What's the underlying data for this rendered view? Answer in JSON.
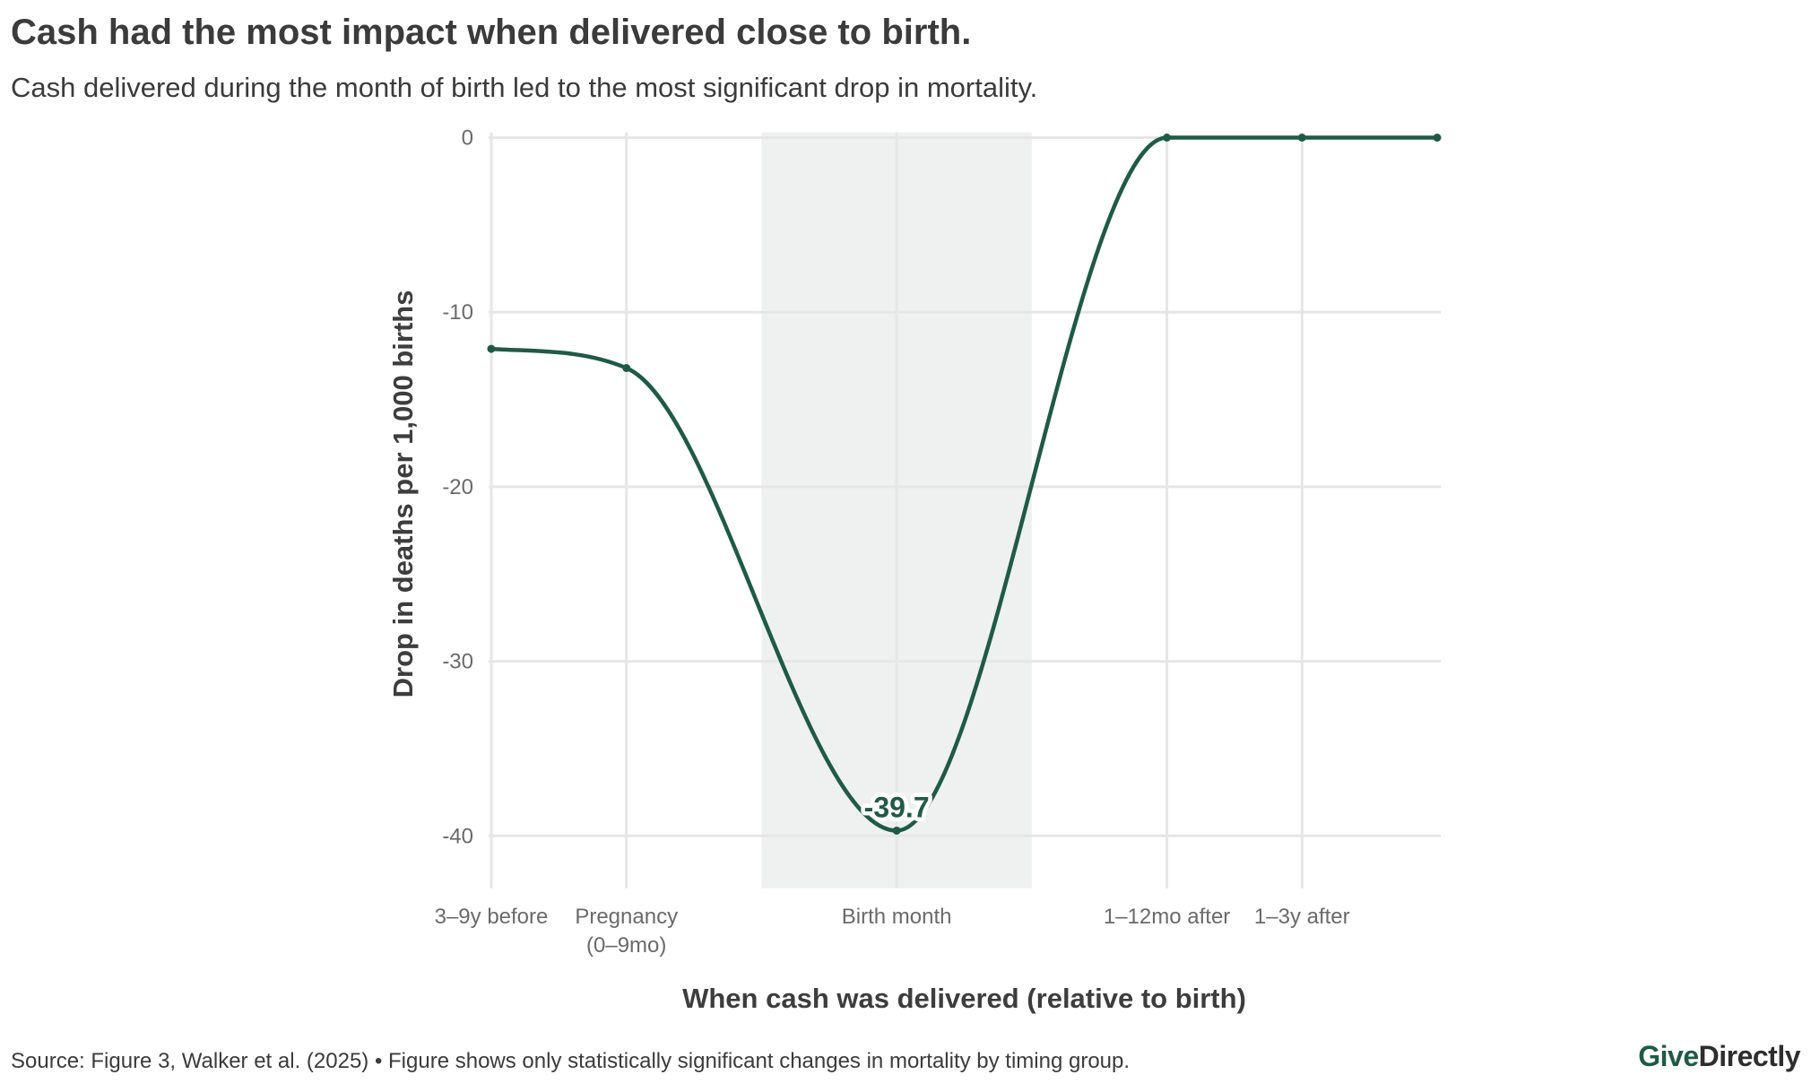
{
  "header": {
    "title": "Cash had the most impact when delivered close to birth.",
    "subtitle": "Cash delivered during the month of birth led to the most significant drop in mortality."
  },
  "footer": {
    "source": "Source: Figure 3, Walker et al. (2025) • Figure shows only statistically significant changes in mortality by timing group.",
    "brand_part1": "Give",
    "brand_part2": "Directly"
  },
  "colors": {
    "series": "#1f5a45",
    "highlight_band": "#eef1f0",
    "grid": "#e6e6e6",
    "text": "#3d3d3d",
    "tick_text": "#6a6a6a"
  },
  "chart_data": {
    "type": "line",
    "title": "Cash had the most impact when delivered close to birth.",
    "subtitle": "Cash delivered during the month of birth led to the most significant drop in mortality.",
    "xlabel": "When cash was delivered (relative to birth)",
    "ylabel": "Drop in deaths per 1,000 births",
    "x_positions": [
      0,
      1,
      2,
      3,
      4,
      5,
      6,
      7
    ],
    "xlim": [
      0,
      7
    ],
    "x_ticks": [
      {
        "pos": 0,
        "lines": [
          "3–9y before"
        ]
      },
      {
        "pos": 1,
        "lines": [
          "Pregnancy",
          "(0–9mo)"
        ]
      },
      {
        "pos": 3,
        "lines": [
          "Birth month"
        ]
      },
      {
        "pos": 5,
        "lines": [
          "1–12mo after"
        ]
      },
      {
        "pos": 6,
        "lines": [
          "1–3y after"
        ]
      }
    ],
    "x_gridlines": [
      0,
      1,
      3,
      5,
      6
    ],
    "series": [
      {
        "name": "Drop in deaths",
        "x": [
          0,
          1,
          3,
          5,
          6,
          7
        ],
        "values": [
          -12.1,
          -13.2,
          -39.7,
          0,
          0,
          0
        ],
        "smooth": true
      }
    ],
    "highlight_range": [
      2,
      4
    ],
    "highlight_label": "Birth month",
    "annotations": [
      {
        "x": 3,
        "y": -39.7,
        "text": "-39.7"
      }
    ],
    "ylim": [
      -43,
      0.2
    ],
    "y_ticks": [
      0,
      -10,
      -20,
      -30,
      -40
    ],
    "y_tick_labels": [
      "0",
      "-10",
      "-20",
      "-30",
      "-40"
    ],
    "grid": true,
    "legend": "none"
  }
}
